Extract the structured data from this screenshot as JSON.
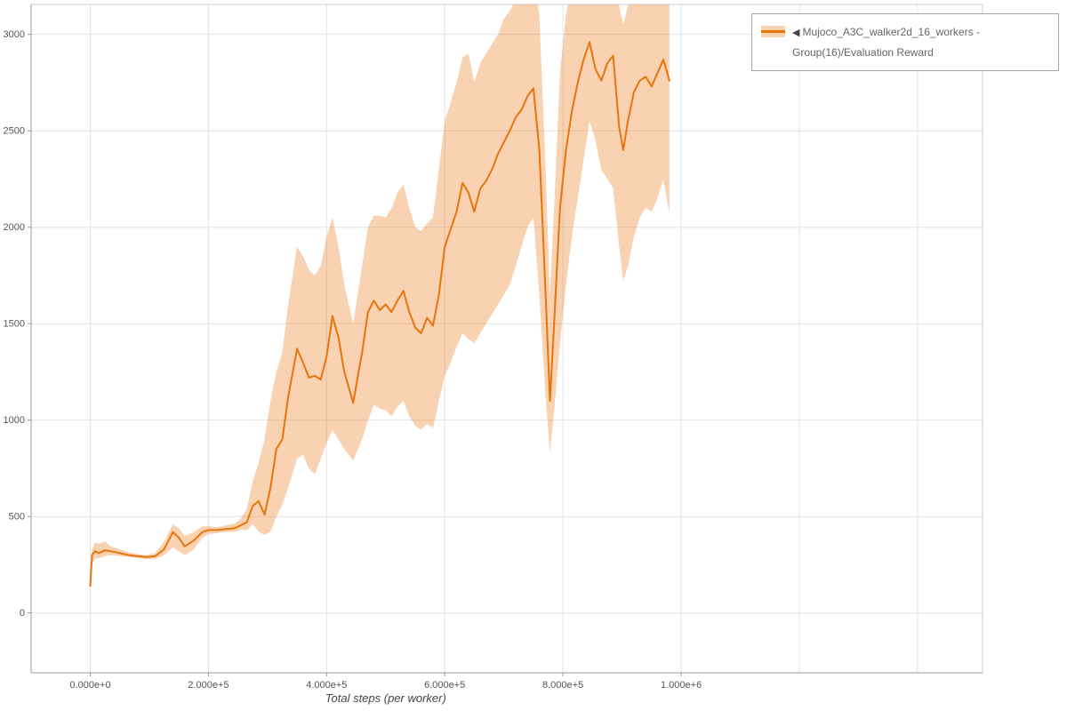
{
  "legend": {
    "collapse_icon": "◀",
    "entries": [
      {
        "label": "Mujoco_A3C_walker2d_16_workers - Group(16)/Evaluation Reward",
        "color": "#e8740c"
      }
    ]
  },
  "chart_data": {
    "type": "line",
    "title": "",
    "xlabel": "Total steps (per worker)",
    "ylabel": "",
    "grid": true,
    "legend_position": "top-right",
    "xlim": [
      -100000,
      1510000
    ],
    "ylim": [
      -310,
      3155
    ],
    "x_ticks": [
      {
        "v": 0,
        "label": "0.000e+0"
      },
      {
        "v": 200000,
        "label": "2.000e+5"
      },
      {
        "v": 400000,
        "label": "4.000e+5"
      },
      {
        "v": 600000,
        "label": "6.000e+5"
      },
      {
        "v": 800000,
        "label": "8.000e+5"
      },
      {
        "v": 1000000,
        "label": "1.000e+6"
      },
      {
        "v": 1200000,
        "label": ""
      },
      {
        "v": 1400000,
        "label": ""
      }
    ],
    "y_ticks": [
      0,
      500,
      1000,
      1500,
      2000,
      2500,
      3000
    ],
    "series": [
      {
        "name": "Mujoco_A3C_walker2d_16_workers - Group(16)/Evaluation Reward",
        "color": "#e8740c",
        "band_opacity": 0.32,
        "x": [
          0,
          3000,
          8000,
          15000,
          25000,
          35000,
          50000,
          65000,
          80000,
          95000,
          110000,
          125000,
          140000,
          150000,
          160000,
          175000,
          190000,
          200000,
          215000,
          230000,
          245000,
          255000,
          265000,
          275000,
          285000,
          295000,
          305000,
          315000,
          325000,
          335000,
          350000,
          360000,
          370000,
          380000,
          390000,
          400000,
          410000,
          420000,
          430000,
          445000,
          460000,
          470000,
          480000,
          490000,
          500000,
          510000,
          520000,
          530000,
          540000,
          550000,
          560000,
          570000,
          580000,
          590000,
          600000,
          610000,
          620000,
          630000,
          640000,
          650000,
          660000,
          670000,
          680000,
          690000,
          700000,
          710000,
          720000,
          730000,
          740000,
          750000,
          760000,
          770000,
          778000,
          785000,
          795000,
          805000,
          815000,
          825000,
          835000,
          845000,
          855000,
          865000,
          875000,
          885000,
          895000,
          902000,
          910000,
          920000,
          930000,
          940000,
          950000,
          960000,
          970000,
          980000
        ],
        "mean": [
          140,
          300,
          320,
          310,
          325,
          320,
          310,
          300,
          295,
          290,
          295,
          330,
          420,
          390,
          345,
          375,
          420,
          430,
          430,
          435,
          440,
          455,
          470,
          555,
          580,
          510,
          650,
          850,
          900,
          1120,
          1370,
          1300,
          1220,
          1230,
          1210,
          1330,
          1540,
          1430,
          1250,
          1090,
          1350,
          1560,
          1620,
          1570,
          1600,
          1560,
          1620,
          1670,
          1560,
          1480,
          1450,
          1530,
          1490,
          1650,
          1900,
          1990,
          2080,
          2230,
          2180,
          2080,
          2200,
          2240,
          2300,
          2380,
          2440,
          2500,
          2570,
          2610,
          2680,
          2720,
          2400,
          1700,
          1100,
          1500,
          2100,
          2400,
          2600,
          2750,
          2870,
          2960,
          2820,
          2760,
          2850,
          2890,
          2520,
          2400,
          2550,
          2700,
          2760,
          2780,
          2730,
          2800,
          2870,
          2760
        ],
        "lower": [
          130,
          260,
          280,
          285,
          295,
          300,
          295,
          290,
          285,
          280,
          280,
          300,
          340,
          320,
          300,
          330,
          390,
          410,
          415,
          420,
          420,
          430,
          430,
          460,
          420,
          405,
          420,
          500,
          560,
          650,
          800,
          820,
          750,
          720,
          800,
          880,
          950,
          900,
          850,
          790,
          900,
          1000,
          1080,
          1060,
          1050,
          1020,
          1070,
          1100,
          1020,
          970,
          950,
          980,
          960,
          1100,
          1230,
          1300,
          1380,
          1450,
          1420,
          1400,
          1450,
          1500,
          1550,
          1600,
          1650,
          1700,
          1800,
          1900,
          2000,
          2050,
          1650,
          1150,
          830,
          1050,
          1400,
          1700,
          1950,
          2150,
          2350,
          2550,
          2450,
          2300,
          2250,
          2200,
          1900,
          1720,
          1800,
          1950,
          2050,
          2100,
          2080,
          2150,
          2250,
          2070
        ],
        "upper": [
          150,
          330,
          365,
          360,
          370,
          345,
          330,
          315,
          305,
          300,
          310,
          370,
          460,
          440,
          400,
          420,
          450,
          450,
          445,
          455,
          465,
          490,
          540,
          680,
          780,
          900,
          1100,
          1250,
          1350,
          1600,
          1900,
          1850,
          1780,
          1750,
          1800,
          1950,
          2050,
          1900,
          1700,
          1500,
          1800,
          2000,
          2060,
          2060,
          2050,
          2100,
          2180,
          2220,
          2100,
          2000,
          1980,
          2020,
          2050,
          2300,
          2550,
          2650,
          2750,
          2880,
          2900,
          2750,
          2850,
          2900,
          2950,
          3000,
          3080,
          3120,
          3180,
          3230,
          3270,
          3300,
          3100,
          2350,
          1650,
          2100,
          2800,
          3100,
          3280,
          3330,
          3350,
          3350,
          3320,
          3300,
          3330,
          3340,
          3150,
          3050,
          3150,
          3250,
          3300,
          3320,
          3300,
          3320,
          3340,
          3300
        ]
      }
    ]
  }
}
